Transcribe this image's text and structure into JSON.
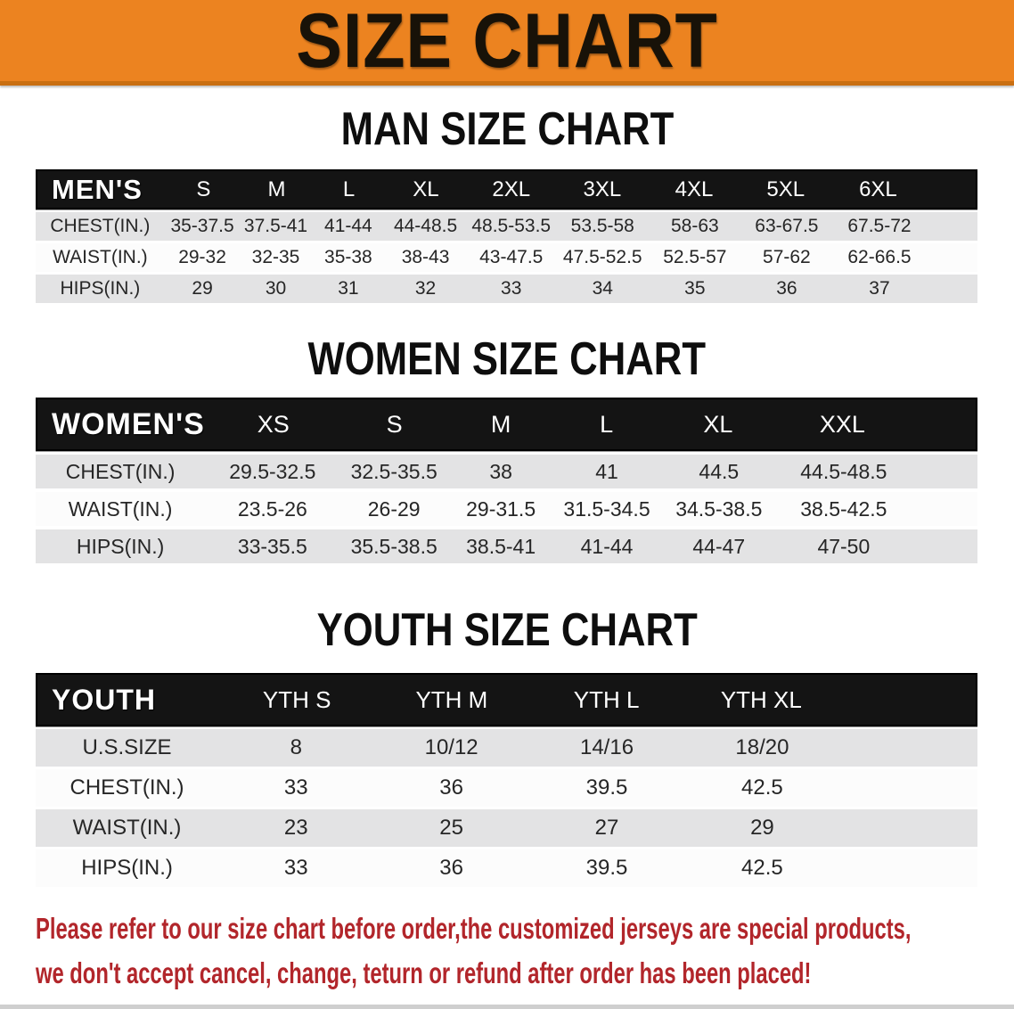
{
  "banner": {
    "title": "SIZE CHART"
  },
  "sections": {
    "men": {
      "title": "MAN SIZE CHART",
      "header_label": "MEN'S",
      "columns": [
        "S",
        "M",
        "L",
        "XL",
        "2XL",
        "3XL",
        "4XL",
        "5XL",
        "6XL"
      ],
      "rows": [
        {
          "label": "CHEST(IN.)",
          "values": [
            "35-37.5",
            "37.5-41",
            "41-44",
            "44-48.5",
            "48.5-53.5",
            "53.5-58",
            "58-63",
            "63-67.5",
            "67.5-72"
          ]
        },
        {
          "label": "WAIST(IN.)",
          "values": [
            "29-32",
            "32-35",
            "35-38",
            "38-43",
            "43-47.5",
            "47.5-52.5",
            "52.5-57",
            "57-62",
            "62-66.5"
          ]
        },
        {
          "label": "HIPS(IN.)",
          "values": [
            "29",
            "30",
            "31",
            "32",
            "33",
            "34",
            "35",
            "36",
            "37"
          ]
        }
      ]
    },
    "women": {
      "title": "WOMEN SIZE CHART",
      "header_label": "WOMEN'S",
      "columns": [
        "XS",
        "S",
        "M",
        "L",
        "XL",
        "XXL"
      ],
      "rows": [
        {
          "label": "CHEST(IN.)",
          "values": [
            "29.5-32.5",
            "32.5-35.5",
            "38",
            "41",
            "44.5",
            "44.5-48.5"
          ]
        },
        {
          "label": "WAIST(IN.)",
          "values": [
            "23.5-26",
            "26-29",
            "29-31.5",
            "31.5-34.5",
            "34.5-38.5",
            "38.5-42.5"
          ]
        },
        {
          "label": "HIPS(IN.)",
          "values": [
            "33-35.5",
            "35.5-38.5",
            "38.5-41",
            "41-44",
            "44-47",
            "47-50"
          ]
        }
      ]
    },
    "youth": {
      "title": "YOUTH SIZE CHART",
      "header_label": "YOUTH",
      "columns": [
        "YTH S",
        "YTH M",
        "YTH L",
        "YTH XL"
      ],
      "rows": [
        {
          "label": "U.S.SIZE",
          "values": [
            "8",
            "10/12",
            "14/16",
            "18/20"
          ]
        },
        {
          "label": "CHEST(IN.)",
          "values": [
            "33",
            "36",
            "39.5",
            "42.5"
          ]
        },
        {
          "label": "WAIST(IN.)",
          "values": [
            "23",
            "25",
            "27",
            "29"
          ]
        },
        {
          "label": "HIPS(IN.)",
          "values": [
            "33",
            "36",
            "39.5",
            "42.5"
          ]
        }
      ]
    }
  },
  "disclaimer": {
    "line1": "Please refer to our size chart before order,the customized jerseys are special products,",
    "line2": "we don't accept cancel, change, teturn or refund after order has been placed!"
  },
  "colors": {
    "banner_bg": "#EC8320",
    "banner_border": "#C96F12",
    "header_bar_bg": "#141414",
    "header_text": "#FFFFFF",
    "row_gray": "#E3E3E4",
    "row_white": "#FCFCFC",
    "body_text": "#262626",
    "title_text": "#0E0E0E",
    "disclaimer_red": "#B2262B"
  }
}
